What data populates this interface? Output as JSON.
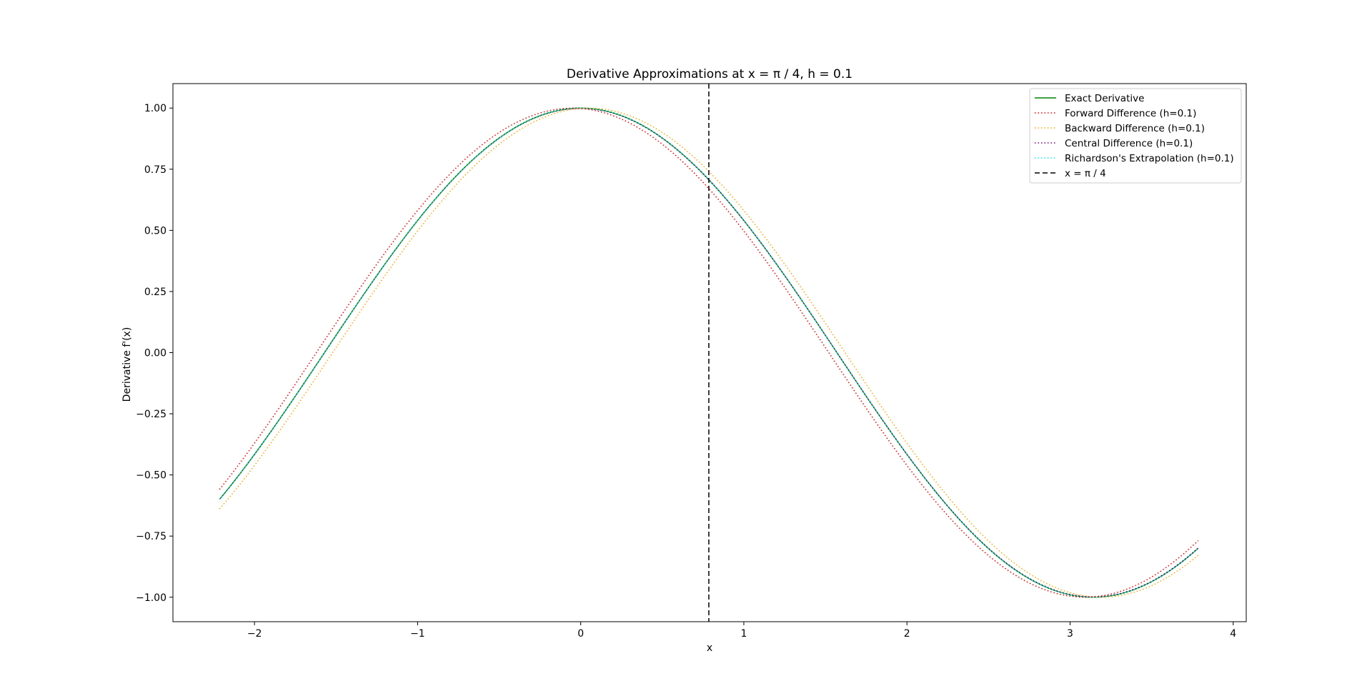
{
  "chart_data": {
    "type": "line",
    "title": "Derivative Approximations at x = π / 4, h = 0.1",
    "xlabel": "x",
    "ylabel": "Derivative f'(x)",
    "xlim": [
      -2.5,
      4.08
    ],
    "ylim": [
      -1.1,
      1.1
    ],
    "xticks": [
      -2,
      -1,
      0,
      1,
      2,
      3,
      4
    ],
    "xtick_labels": [
      "−2",
      "−1",
      "0",
      "1",
      "2",
      "3",
      "4"
    ],
    "yticks": [
      1.0,
      0.75,
      0.5,
      0.25,
      0.0,
      -0.25,
      -0.5,
      -0.75,
      -1.0
    ],
    "ytick_labels": [
      "1.00",
      "0.75",
      "0.50",
      "0.25",
      "0.00",
      "−0.25",
      "−0.50",
      "−0.75",
      "−1.00"
    ],
    "grid": false,
    "legend_position": "top-right",
    "x_range": [
      -2.2146,
      3.7854
    ],
    "h": 0.1,
    "series": [
      {
        "name": "Exact Derivative",
        "function": "cos(x)",
        "color": "#008000",
        "style": "solid",
        "sample": [
          [
            -2.2146,
            -0.6
          ],
          [
            0,
            1.0
          ],
          [
            0.7854,
            0.7071
          ],
          [
            3.1416,
            -1.0
          ],
          [
            3.7854,
            -0.8
          ]
        ]
      },
      {
        "name": "Forward Difference (h=0.1)",
        "function": "(sin(x+h)-sin(x))/h",
        "color": "#ff0000",
        "style": "dotted",
        "sample": [
          [
            -2.2146,
            -0.56
          ],
          [
            0,
            0.998
          ],
          [
            0.7854,
            0.671
          ],
          [
            3.1416,
            -0.998
          ],
          [
            3.7854,
            -0.77
          ]
        ]
      },
      {
        "name": "Backward Difference (h=0.1)",
        "function": "(sin(x)-sin(x-h))/h",
        "color": "#ffa500",
        "style": "dotted",
        "sample": [
          [
            -2.2146,
            -0.637
          ],
          [
            0,
            0.998
          ],
          [
            0.7854,
            0.742
          ],
          [
            3.1416,
            -0.998
          ],
          [
            3.7854,
            -0.827
          ]
        ]
      },
      {
        "name": "Central Difference (h=0.1)",
        "function": "(sin(x+h)-sin(x-h))/(2h)",
        "color": "#800080",
        "style": "dotted",
        "sample": [
          [
            -2.2146,
            -0.599
          ],
          [
            0,
            0.998
          ],
          [
            0.7854,
            0.706
          ],
          [
            3.1416,
            -0.998
          ],
          [
            3.7854,
            -0.799
          ]
        ]
      },
      {
        "name": "Richardson's Extrapolation (h=0.1)",
        "function": "(4*D(h/2)-D(h))/3",
        "color": "#00ffff",
        "style": "dotted",
        "sample": [
          [
            -2.2146,
            -0.6
          ],
          [
            0,
            1.0
          ],
          [
            0.7854,
            0.7071
          ],
          [
            3.1416,
            -1.0
          ],
          [
            3.7854,
            -0.8
          ]
        ]
      }
    ],
    "vline": {
      "name": "x = π / 4",
      "x": 0.7853981634,
      "color": "#000000",
      "style": "dashed"
    }
  }
}
